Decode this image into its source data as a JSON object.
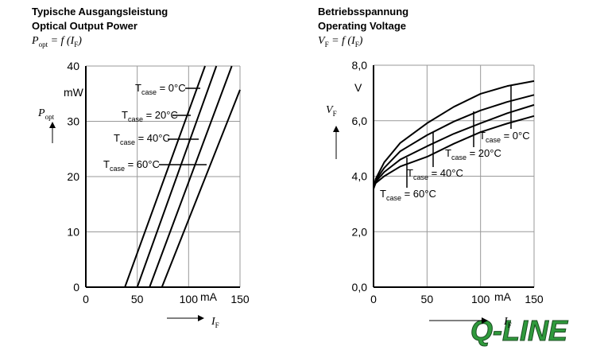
{
  "chart_data": [
    {
      "type": "line",
      "title": "Typische Ausgangsleistung",
      "subtitle": "Optical Output Power",
      "formula": [
        "P",
        "opt",
        " = f (I",
        "F",
        ")"
      ],
      "y_label": [
        "P",
        "opt"
      ],
      "y_unit": "mW",
      "x_label": [
        "I",
        "F"
      ],
      "x_unit": "mA",
      "xlim": [
        0,
        150
      ],
      "xticks": [
        0,
        50,
        100,
        150
      ],
      "ylim": [
        0,
        40
      ],
      "yticks": [
        0,
        10,
        20,
        30,
        40
      ],
      "grid": true,
      "series": [
        {
          "name": [
            "T",
            "case",
            " = 0°C"
          ],
          "color": "#000000",
          "x": [
            0,
            38,
            116
          ],
          "values": [
            0,
            0,
            40
          ]
        },
        {
          "name": [
            "T",
            "case",
            " = 20°C"
          ],
          "color": "#000000",
          "x": [
            0,
            50,
            127
          ],
          "values": [
            0,
            0,
            40
          ]
        },
        {
          "name": [
            "T",
            "case",
            " = 40°C"
          ],
          "color": "#000000",
          "x": [
            0,
            62,
            142
          ],
          "values": [
            0,
            0,
            40
          ]
        },
        {
          "name": [
            "T",
            "case",
            " = 60°C"
          ],
          "color": "#000000",
          "x": [
            0,
            74,
            150
          ],
          "values": [
            0,
            0,
            35.7
          ]
        }
      ]
    },
    {
      "type": "line",
      "title": "Betriebsspannung",
      "subtitle": "Operating Voltage",
      "formula": [
        "V",
        "F",
        " = f (I",
        "F",
        ")"
      ],
      "y_label": [
        "V",
        "F"
      ],
      "y_unit": "V",
      "x_label": [
        "I",
        "F"
      ],
      "x_unit": "mA",
      "xlim": [
        0,
        150
      ],
      "xticks": [
        0,
        50,
        100,
        150
      ],
      "ylim": [
        0,
        8
      ],
      "yticks": [
        {
          "value": 0,
          "label": "0,0"
        },
        {
          "value": 2,
          "label": "2,0"
        },
        {
          "value": 4,
          "label": "4,0"
        },
        {
          "value": 6,
          "label": "6,0"
        },
        {
          "value": 8,
          "label": "8,0"
        }
      ],
      "grid": true,
      "series": [
        {
          "name": [
            "T",
            "case",
            " = 0°C"
          ],
          "color": "#000000",
          "x": [
            0,
            2,
            10,
            25,
            50,
            75,
            100,
            125,
            150
          ],
          "values": [
            3.55,
            3.9,
            4.5,
            5.2,
            5.91,
            6.5,
            6.97,
            7.25,
            7.43
          ]
        },
        {
          "name": [
            "T",
            "case",
            " = 20°C"
          ],
          "color": "#000000",
          "x": [
            0,
            2,
            10,
            25,
            50,
            75,
            100,
            125,
            150
          ],
          "values": [
            3.55,
            3.85,
            4.3,
            4.9,
            5.48,
            5.97,
            6.37,
            6.68,
            6.93
          ]
        },
        {
          "name": [
            "T",
            "case",
            " = 40°C"
          ],
          "color": "#000000",
          "x": [
            0,
            2,
            10,
            25,
            50,
            75,
            100,
            125,
            150
          ],
          "values": [
            3.55,
            3.8,
            4.15,
            4.6,
            5.08,
            5.53,
            5.91,
            6.27,
            6.57
          ]
        },
        {
          "name": [
            "T",
            "case",
            " = 60°C"
          ],
          "color": "#000000",
          "x": [
            0,
            2,
            10,
            25,
            50,
            75,
            100,
            125,
            150
          ],
          "values": [
            3.55,
            3.75,
            4.0,
            4.35,
            4.7,
            5.17,
            5.59,
            5.9,
            6.17
          ]
        }
      ]
    }
  ],
  "logo": "Q-LINE"
}
